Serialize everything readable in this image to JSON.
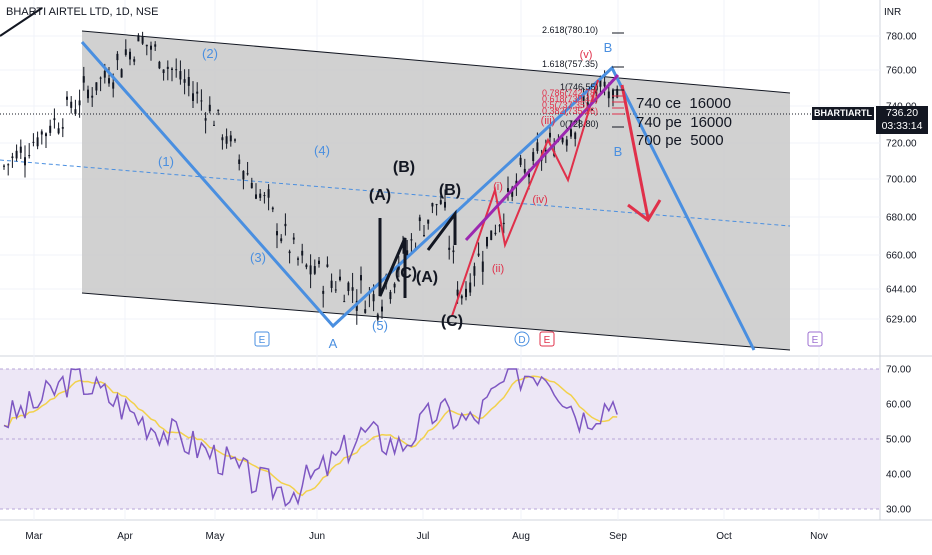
{
  "header": {
    "symbol": "BHARTI AIRTEL LTD",
    "interval": "1D",
    "exchange": "NSE",
    "sep": ", "
  },
  "price_axis": {
    "unit": "INR",
    "ticks": [
      "780.00",
      "760.00",
      "740.00",
      "720.00",
      "700.00",
      "680.00",
      "660.00",
      "644.00",
      "629.00"
    ]
  },
  "rsi_axis": {
    "ticks": [
      "70.00",
      "60.00",
      "50.00",
      "40.00",
      "30.00"
    ]
  },
  "time_axis": {
    "labels": [
      "Mar",
      "Apr",
      "May",
      "Jun",
      "Jul",
      "Aug",
      "Sep",
      "Oct",
      "Nov"
    ]
  },
  "current_price": {
    "symbol_label": "BHARTIARTL",
    "price": "736.20",
    "countdown": "03:33:14"
  },
  "trades": [
    {
      "strike": "740 ce",
      "qty": "16000"
    },
    {
      "strike": "740 pe",
      "qty": "16000"
    },
    {
      "strike": "700 pe",
      "qty": "5000"
    }
  ],
  "fib_levels": [
    "2.618(780.10)",
    "1.618(757.35)",
    "1(746.55)",
    "0.786(742.78)",
    "0.618(739.43)",
    "0.5(737.35)",
    "0.382(735.26)",
    "0(728.80)"
  ],
  "wave_labels": {
    "blue": [
      "(1)",
      "(2)",
      "(3)",
      "(4)",
      "(5)",
      "A",
      "B",
      "B"
    ],
    "black": [
      "(A)",
      "(B)",
      "(C)",
      "(B)",
      "(A)",
      "(C)"
    ],
    "red": [
      "(i)",
      "(ii)",
      "(iii)",
      "(iv)",
      "(v)"
    ]
  },
  "event_markers": [
    "E",
    "D",
    "E",
    "E"
  ],
  "colors": {
    "channel_fill": "#c9c9c9",
    "blue_wave": "#4a8fe0",
    "red_wave": "#e0304a",
    "purple_wave": "#9c27b0",
    "rsi_line": "#7e57c2",
    "rsi_ma": "#f2d14b",
    "rsi_band": "#ede7f6",
    "candle": "#131722"
  },
  "chart_data": {
    "type": "line",
    "title": "BHARTI AIRTEL LTD, 1D, NSE",
    "y_unit": "INR",
    "ylim": [
      622,
      792
    ],
    "x_range": [
      "Mar",
      "Nov"
    ],
    "approx_close_path": [
      {
        "t": "Mar",
        "price": 705
      },
      {
        "t": "Apr",
        "price": 760
      },
      {
        "t": "Apr",
        "price": 778
      },
      {
        "t": "May",
        "price": 738
      },
      {
        "t": "Jun",
        "price": 655
      },
      {
        "t": "Jun",
        "price": 639
      },
      {
        "t": "Jul",
        "price": 690
      },
      {
        "t": "Jul",
        "price": 640
      },
      {
        "t": "Aug",
        "price": 700
      },
      {
        "t": "Sep",
        "price": 750
      },
      {
        "t": "Sep",
        "price": 736.2
      }
    ],
    "current_price": 736.2,
    "rsi": {
      "ylim": [
        30,
        70
      ],
      "ticks": [
        70,
        60,
        50,
        40,
        30
      ],
      "last_value": 62,
      "approx_path": [
        55,
        60,
        68,
        62,
        55,
        50,
        45,
        38,
        35,
        42,
        52,
        48,
        58,
        55,
        68,
        70,
        56,
        62
      ]
    },
    "grid": true
  }
}
